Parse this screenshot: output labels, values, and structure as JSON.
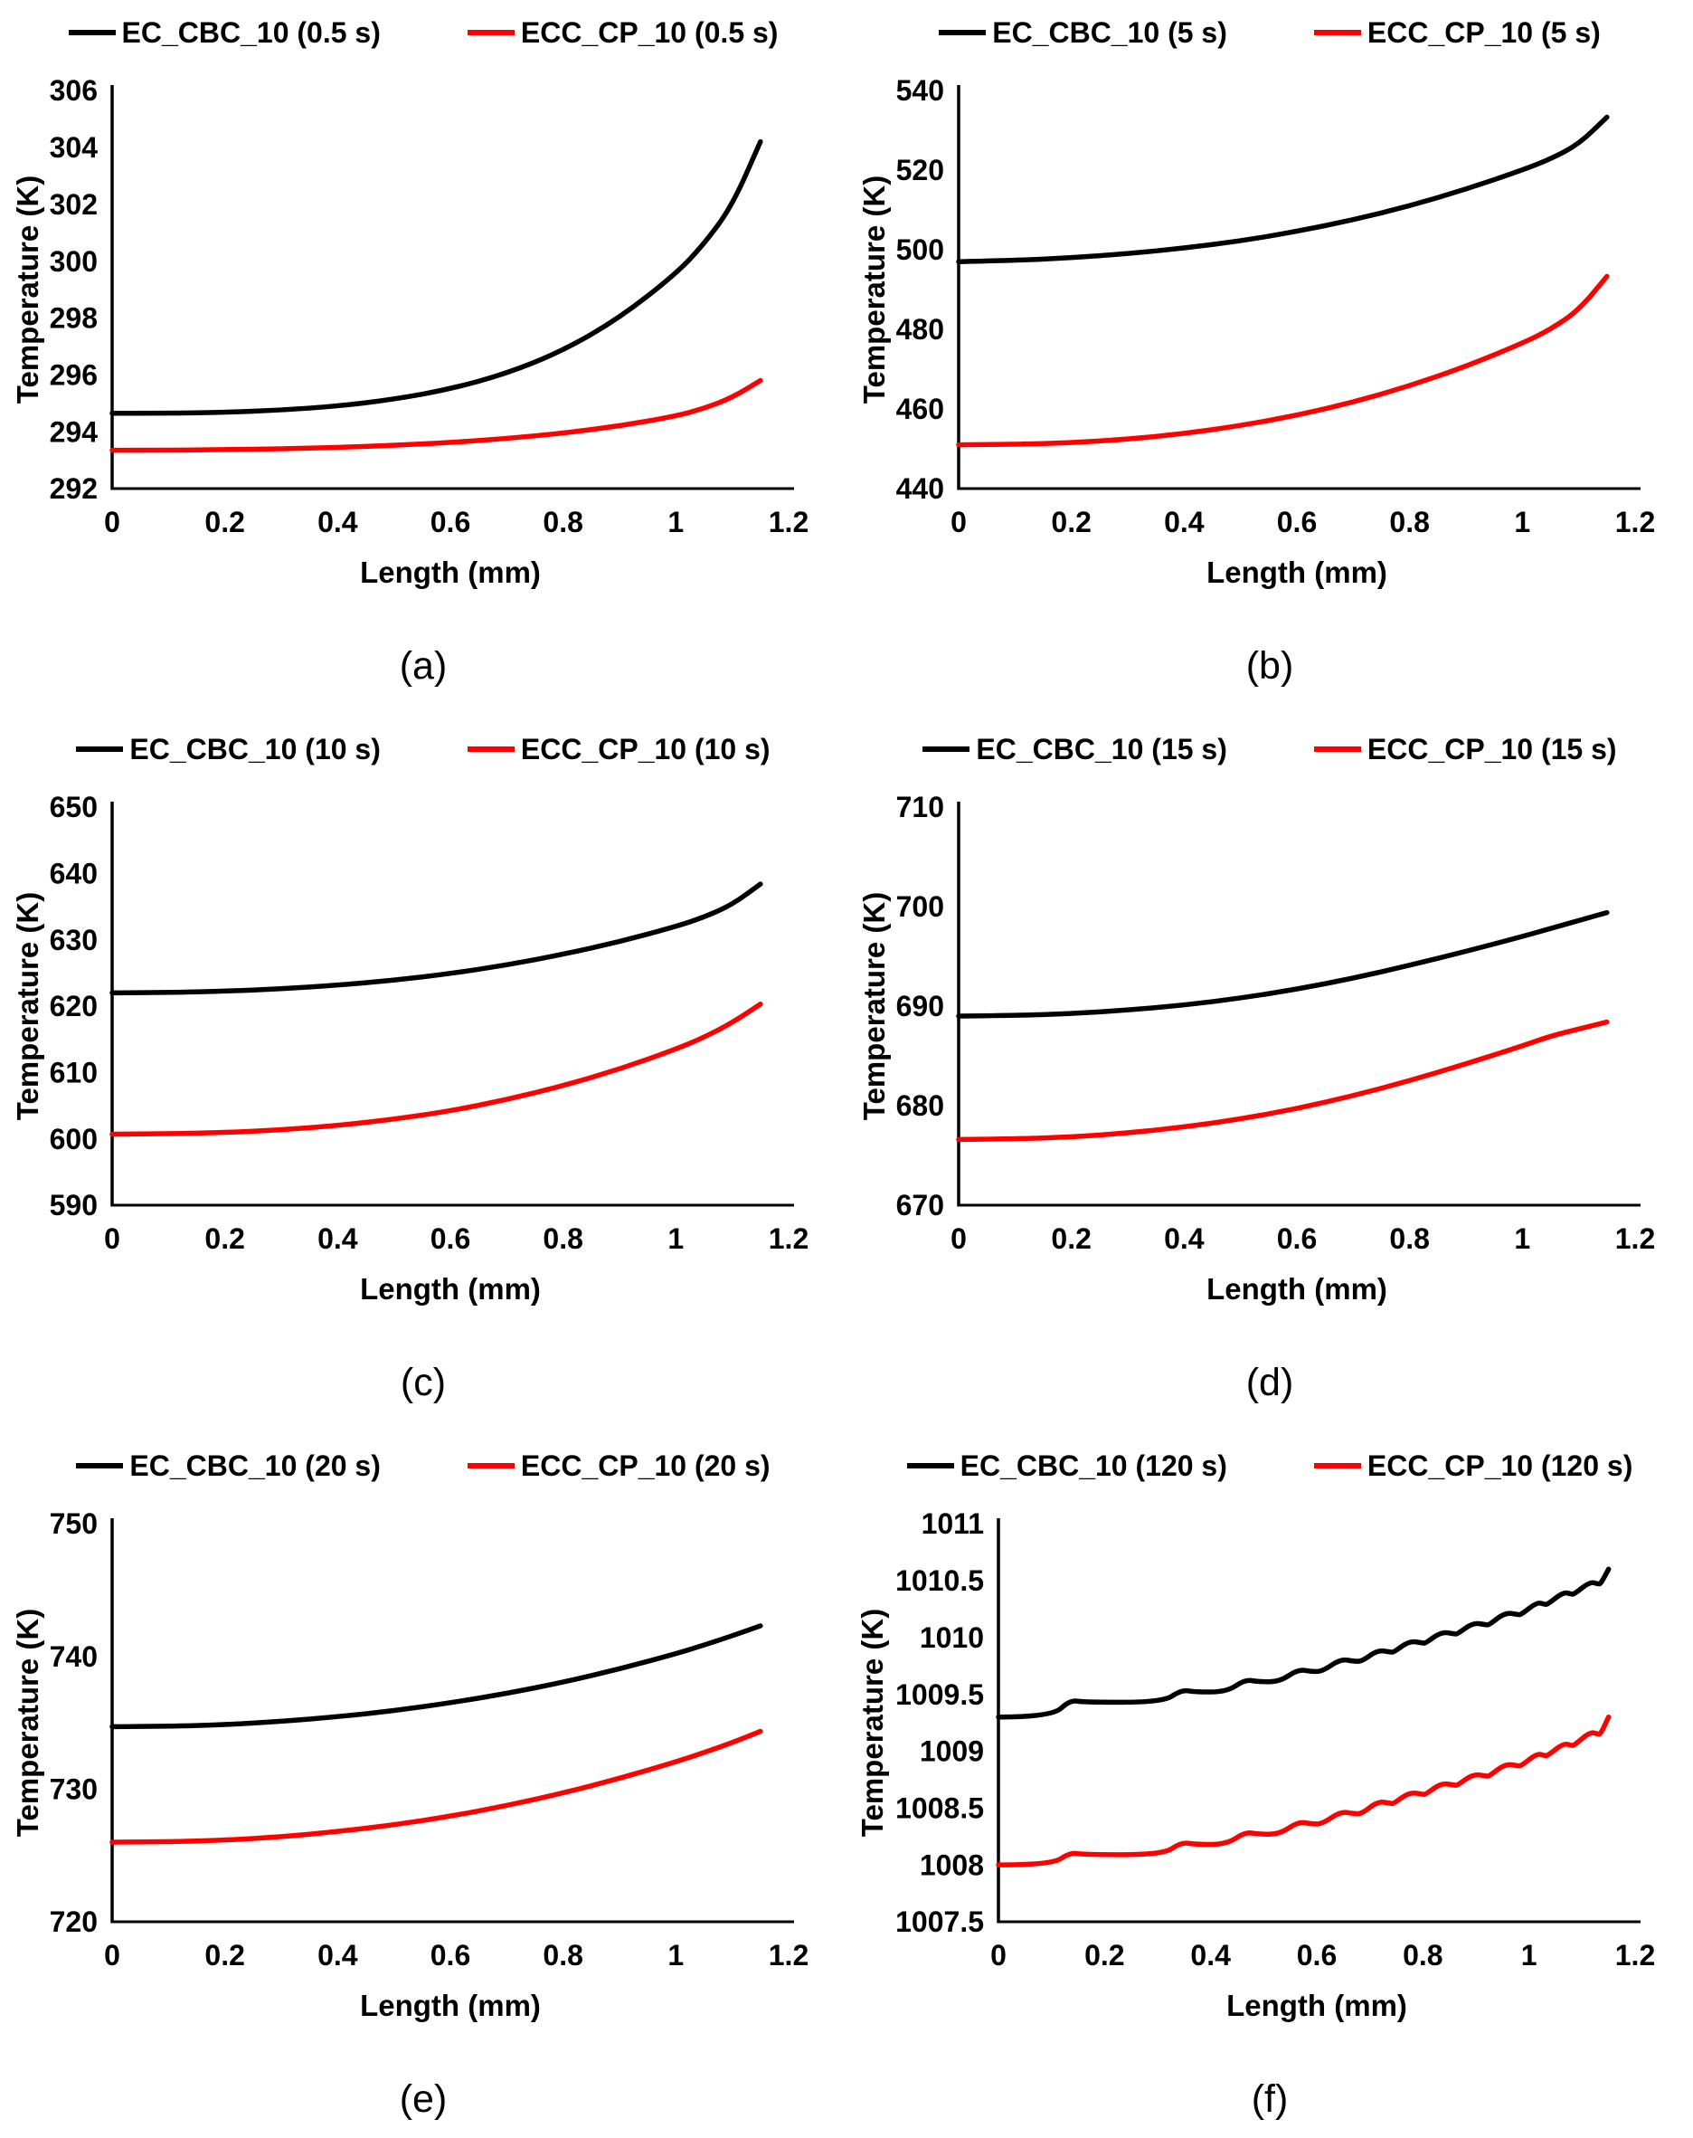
{
  "figure": {
    "background": "#ffffff",
    "series_black": "#000000",
    "series_red": "#ff0000",
    "legend_position": "top",
    "grid": "off"
  },
  "chart_data": [
    {
      "type": "line",
      "caption": "(a)",
      "xlabel": "Length (mm)",
      "ylabel": "Temperature (K)",
      "xlim": [
        0,
        1.2
      ],
      "ylim": [
        292,
        306
      ],
      "xticks": [
        0,
        0.2,
        0.4,
        0.6,
        0.8,
        1,
        1.2
      ],
      "yticks": [
        292,
        294,
        296,
        298,
        300,
        302,
        304,
        306
      ],
      "series": [
        {
          "name": "EC_CBC_10 (0.5 s)",
          "color": "#000000",
          "x": [
            0,
            0.1,
            0.2,
            0.3,
            0.4,
            0.5,
            0.6,
            0.7,
            0.8,
            0.9,
            1.0,
            1.05,
            1.1,
            1.15
          ],
          "y": [
            294.65,
            294.65,
            294.68,
            294.76,
            294.9,
            295.14,
            295.5,
            296.05,
            296.85,
            298.0,
            299.55,
            300.6,
            301.95,
            304.2
          ]
        },
        {
          "name": "ECC_CP_10 (0.5 s)",
          "color": "#ff0000",
          "x": [
            0,
            0.1,
            0.2,
            0.3,
            0.4,
            0.5,
            0.6,
            0.7,
            0.8,
            0.9,
            1.0,
            1.05,
            1.1,
            1.15
          ],
          "y": [
            293.35,
            293.35,
            293.37,
            293.4,
            293.45,
            293.52,
            293.62,
            293.76,
            293.95,
            294.2,
            294.55,
            294.82,
            295.2,
            295.8
          ]
        }
      ]
    },
    {
      "type": "line",
      "caption": "(b)",
      "xlabel": "Length (mm)",
      "ylabel": "Temperature (K)",
      "xlim": [
        0,
        1.2
      ],
      "ylim": [
        440,
        540
      ],
      "xticks": [
        0,
        0.2,
        0.4,
        0.6,
        0.8,
        1,
        1.2
      ],
      "yticks": [
        440,
        460,
        480,
        500,
        520,
        540
      ],
      "series": [
        {
          "name": "EC_CBC_10 (5 s)",
          "color": "#000000",
          "x": [
            0,
            0.1,
            0.2,
            0.3,
            0.4,
            0.5,
            0.6,
            0.7,
            0.8,
            0.9,
            1.0,
            1.05,
            1.1,
            1.15
          ],
          "y": [
            497,
            497.3,
            498,
            499,
            500.4,
            502.2,
            504.6,
            507.5,
            511,
            515.2,
            520,
            522.8,
            526.5,
            533.3
          ]
        },
        {
          "name": "ECC_CP_10 (5 s)",
          "color": "#ff0000",
          "x": [
            0,
            0.1,
            0.2,
            0.3,
            0.4,
            0.5,
            0.6,
            0.7,
            0.8,
            0.9,
            1.0,
            1.05,
            1.1,
            1.15
          ],
          "y": [
            451,
            451.1,
            451.5,
            452.4,
            453.8,
            455.8,
            458.4,
            461.7,
            465.8,
            470.7,
            476.5,
            480,
            484.8,
            493.3
          ]
        }
      ]
    },
    {
      "type": "line",
      "caption": "(c)",
      "xlabel": "Length (mm)",
      "ylabel": "Temperature (K)",
      "xlim": [
        0,
        1.2
      ],
      "ylim": [
        590,
        650
      ],
      "xticks": [
        0,
        0.2,
        0.4,
        0.6,
        0.8,
        1,
        1.2
      ],
      "yticks": [
        590,
        600,
        610,
        620,
        630,
        640,
        650
      ],
      "series": [
        {
          "name": "EC_CBC_10 (10 s)",
          "color": "#000000",
          "x": [
            0,
            0.1,
            0.2,
            0.3,
            0.4,
            0.5,
            0.6,
            0.7,
            0.8,
            0.9,
            1.0,
            1.05,
            1.1,
            1.15
          ],
          "y": [
            622,
            622.05,
            622.25,
            622.6,
            623.15,
            623.9,
            624.9,
            626.2,
            627.8,
            629.7,
            632,
            633.4,
            635.3,
            638.4
          ]
        },
        {
          "name": "ECC_CP_10 (10 s)",
          "color": "#ff0000",
          "x": [
            0,
            0.1,
            0.2,
            0.3,
            0.4,
            0.5,
            0.6,
            0.7,
            0.8,
            0.9,
            1.0,
            1.05,
            1.1,
            1.15
          ],
          "y": [
            600.7,
            600.75,
            600.95,
            601.35,
            602,
            602.95,
            604.2,
            605.9,
            608,
            610.5,
            613.5,
            615.3,
            617.5,
            620.3
          ]
        }
      ]
    },
    {
      "type": "line",
      "caption": "(d)",
      "xlabel": "Length (mm)",
      "ylabel": "Temperature (K)",
      "xlim": [
        0,
        1.2
      ],
      "ylim": [
        670,
        710
      ],
      "xticks": [
        0,
        0.2,
        0.4,
        0.6,
        0.8,
        1,
        1.2
      ],
      "yticks": [
        670,
        680,
        690,
        700,
        710
      ],
      "series": [
        {
          "name": "EC_CBC_10 (15 s)",
          "color": "#000000",
          "x": [
            0,
            0.1,
            0.2,
            0.3,
            0.4,
            0.5,
            0.6,
            0.7,
            0.8,
            0.9,
            1.0,
            1.05,
            1.1,
            1.15
          ],
          "y": [
            689,
            689.05,
            689.25,
            689.6,
            690.1,
            690.8,
            691.7,
            692.8,
            694.1,
            695.5,
            697,
            697.8,
            698.6,
            699.4
          ]
        },
        {
          "name": "ECC_CP_10 (15 s)",
          "color": "#ff0000",
          "x": [
            0,
            0.1,
            0.2,
            0.3,
            0.4,
            0.5,
            0.6,
            0.7,
            0.8,
            0.9,
            1.0,
            1.05,
            1.1,
            1.15
          ],
          "y": [
            676.6,
            676.65,
            676.85,
            677.25,
            677.85,
            678.65,
            679.7,
            681,
            682.5,
            684.2,
            686,
            687,
            687.7,
            688.4
          ]
        }
      ]
    },
    {
      "type": "line",
      "caption": "(e)",
      "xlabel": "Length (mm)",
      "ylabel": "Temperature (K)",
      "xlim": [
        0,
        1.2
      ],
      "ylim": [
        720,
        750
      ],
      "xticks": [
        0,
        0.2,
        0.4,
        0.6,
        0.8,
        1,
        1.2
      ],
      "yticks": [
        720,
        730,
        740,
        750
      ],
      "series": [
        {
          "name": "EC_CBC_10 (20 s)",
          "color": "#000000",
          "x": [
            0,
            0.1,
            0.2,
            0.3,
            0.4,
            0.5,
            0.6,
            0.7,
            0.8,
            0.9,
            1.0,
            1.05,
            1.1,
            1.15
          ],
          "y": [
            734.7,
            734.72,
            734.85,
            735.1,
            735.45,
            735.9,
            736.5,
            737.2,
            738.05,
            739.05,
            740.2,
            740.85,
            741.55,
            742.3
          ]
        },
        {
          "name": "ECC_CP_10 (20 s)",
          "color": "#ff0000",
          "x": [
            0,
            0.1,
            0.2,
            0.3,
            0.4,
            0.5,
            0.6,
            0.7,
            0.8,
            0.9,
            1.0,
            1.05,
            1.1,
            1.15
          ],
          "y": [
            726,
            726.02,
            726.15,
            726.4,
            726.8,
            727.3,
            727.95,
            728.75,
            729.7,
            730.8,
            732.05,
            732.75,
            733.5,
            734.35
          ]
        }
      ]
    },
    {
      "type": "line",
      "caption": "(f)",
      "xlabel": "Length (mm)",
      "ylabel": "Temperature (K)",
      "xlim": [
        0,
        1.2
      ],
      "ylim": [
        1007.5,
        1011
      ],
      "xticks": [
        0,
        0.2,
        0.4,
        0.6,
        0.8,
        1,
        1.2
      ],
      "yticks": [
        1007.5,
        1008,
        1008.5,
        1009,
        1009.5,
        1010,
        1010.5,
        1011
      ],
      "series": [
        {
          "name": "EC_CBC_10 (120 s)",
          "color": "#000000",
          "x": [
            0,
            0.1,
            0.135,
            0.16,
            0.31,
            0.345,
            0.37,
            0.43,
            0.465,
            0.49,
            0.53,
            0.565,
            0.59,
            0.61,
            0.645,
            0.67,
            0.685,
            0.715,
            0.74,
            0.745,
            0.775,
            0.8,
            0.805,
            0.835,
            0.86,
            0.865,
            0.895,
            0.92,
            0.925,
            0.955,
            0.98,
            0.985,
            1.015,
            1.03,
            1.035,
            1.065,
            1.08,
            1.085,
            1.115,
            1.13,
            1.135,
            1.15
          ],
          "y": [
            1009.3,
            1009.3,
            1009.45,
            1009.43,
            1009.43,
            1009.54,
            1009.52,
            1009.52,
            1009.63,
            1009.61,
            1009.61,
            1009.72,
            1009.7,
            1009.7,
            1009.81,
            1009.79,
            1009.79,
            1009.89,
            1009.87,
            1009.87,
            1009.97,
            1009.95,
            1009.95,
            1010.05,
            1010.03,
            1010.03,
            1010.13,
            1010.11,
            1010.11,
            1010.22,
            1010.2,
            1010.2,
            1010.31,
            1010.29,
            1010.29,
            1010.4,
            1010.38,
            1010.38,
            1010.49,
            1010.47,
            1010.47,
            1010.6
          ]
        },
        {
          "name": "ECC_CP_10 (120 s)",
          "color": "#ff0000",
          "x": [
            0,
            0.1,
            0.135,
            0.16,
            0.31,
            0.345,
            0.37,
            0.43,
            0.465,
            0.49,
            0.53,
            0.565,
            0.59,
            0.61,
            0.645,
            0.67,
            0.685,
            0.715,
            0.74,
            0.745,
            0.775,
            0.8,
            0.805,
            0.835,
            0.86,
            0.865,
            0.895,
            0.92,
            0.925,
            0.955,
            0.98,
            0.985,
            1.015,
            1.03,
            1.035,
            1.065,
            1.08,
            1.085,
            1.115,
            1.13,
            1.135,
            1.15
          ],
          "y": [
            1008.0,
            1008.0,
            1008.11,
            1008.09,
            1008.09,
            1008.2,
            1008.18,
            1008.18,
            1008.29,
            1008.27,
            1008.27,
            1008.38,
            1008.36,
            1008.36,
            1008.47,
            1008.45,
            1008.45,
            1008.56,
            1008.54,
            1008.54,
            1008.64,
            1008.62,
            1008.62,
            1008.72,
            1008.7,
            1008.7,
            1008.8,
            1008.78,
            1008.78,
            1008.89,
            1008.87,
            1008.87,
            1008.98,
            1008.96,
            1008.96,
            1009.07,
            1009.05,
            1009.05,
            1009.17,
            1009.15,
            1009.15,
            1009.3
          ]
        }
      ]
    }
  ]
}
